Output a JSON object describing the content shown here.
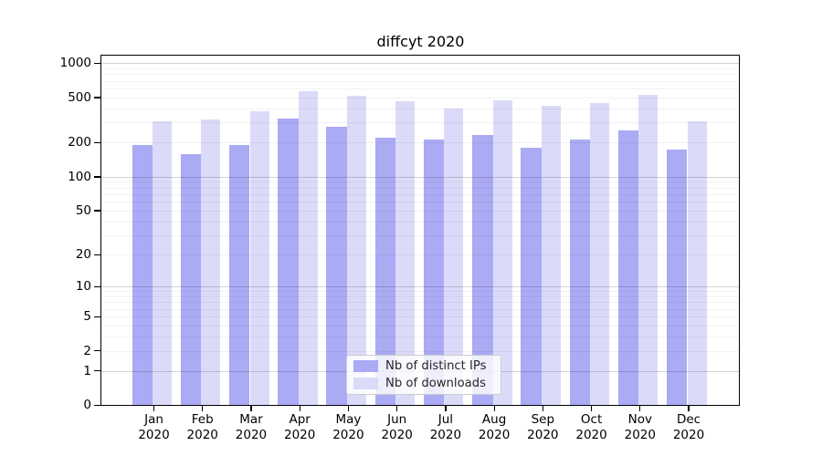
{
  "title": "diffcyt 2020",
  "chart_data": {
    "type": "bar",
    "title": "diffcyt 2020",
    "categories": [
      "Jan",
      "Feb",
      "Mar",
      "Apr",
      "May",
      "Jun",
      "Jul",
      "Aug",
      "Sep",
      "Oct",
      "Nov",
      "Dec"
    ],
    "year_label": "2020",
    "series": [
      {
        "name": "Nb of distinct IPs",
        "color": "#aaaaf5",
        "values": [
          192,
          158,
          189,
          328,
          274,
          220,
          214,
          233,
          180,
          214,
          257,
          174
        ]
      },
      {
        "name": "Nb of downloads",
        "color": "#dbdbf9",
        "values": [
          308,
          321,
          379,
          565,
          518,
          464,
          396,
          470,
          421,
          447,
          525,
          308
        ]
      }
    ],
    "xlabel": "",
    "ylabel": "",
    "y_axis": {
      "scale": "log1p",
      "ticks": [
        0,
        1,
        2,
        5,
        10,
        20,
        50,
        100,
        200,
        500,
        1000
      ],
      "top_value": 1200
    },
    "grid": {
      "major_lines_at": [
        1,
        10,
        100,
        1000
      ],
      "minor_multiples_per_decade": [
        2,
        3,
        4,
        5,
        6,
        7,
        8,
        9
      ]
    },
    "legend_position": "lower-center-inside"
  },
  "colors": {
    "bar_distinct_ips": "#aaaaf5",
    "bar_downloads": "#dbdbf9",
    "grid_major": "rgba(0,0,0,0.17)",
    "grid_minor": "rgba(0,0,0,0.05)",
    "axis": "#000000",
    "legend_border": "#cccccc"
  }
}
